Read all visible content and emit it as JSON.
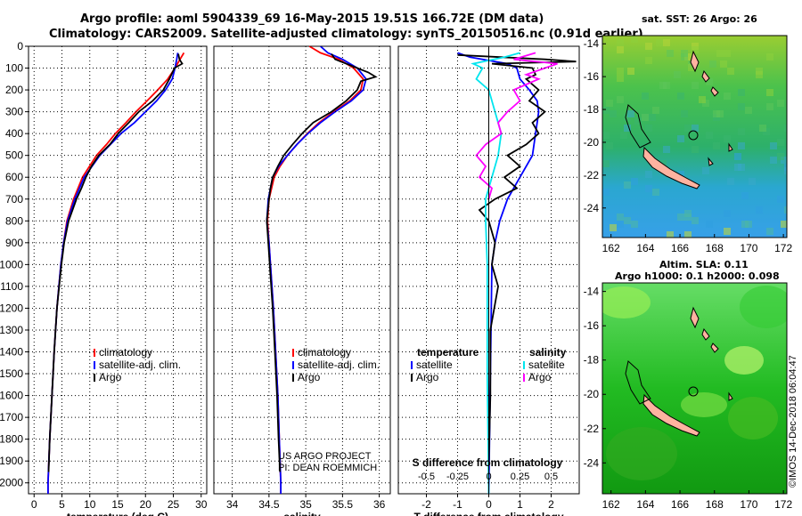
{
  "header": {
    "line1": "Argo profile: aoml 5904339_69 16-May-2015 19.51S 166.72E (DM data)",
    "line2": "Climatology: CARS2009. Satellite-adjusted climatology: synTS_20150516.nc (0.91d earlier)"
  },
  "colors": {
    "climatology": "#ff0000",
    "satellite": "#0000ff",
    "argo": "#000000",
    "sat_salinity": "#00e5ee",
    "argo_salinity": "#ff00ff"
  },
  "chart_data": [
    {
      "type": "line",
      "name": "temperature-profile",
      "xlabel": "temperature (deg C)",
      "ylabel": "",
      "xlim": [
        -1,
        31
      ],
      "ylim": [
        2050,
        0
      ],
      "xticks": [
        0,
        5,
        10,
        15,
        20,
        25,
        30
      ],
      "yticks": [
        0,
        100,
        200,
        300,
        400,
        500,
        600,
        700,
        800,
        900,
        1000,
        1100,
        1200,
        1300,
        1400,
        1500,
        1600,
        1700,
        1800,
        1900,
        2000
      ],
      "legend": [
        "climatology",
        "satellite-adj. clim.",
        "Argo"
      ],
      "series": [
        {
          "name": "climatology",
          "color": "#ff0000",
          "depth": [
            30,
            60,
            100,
            150,
            200,
            250,
            300,
            350,
            400,
            450,
            500,
            600,
            700,
            800,
            900,
            1000,
            1200,
            1400,
            1600,
            1800,
            2000,
            2050
          ],
          "values": [
            26.9,
            26.2,
            25.3,
            24.0,
            22.2,
            20.3,
            18.3,
            16.5,
            14.6,
            13.0,
            11.2,
            8.7,
            7.1,
            5.9,
            5.3,
            4.8,
            4.1,
            3.6,
            3.2,
            2.8,
            2.5,
            2.5
          ]
        },
        {
          "name": "satellite-adj. clim.",
          "color": "#0000ff",
          "depth": [
            30,
            60,
            100,
            150,
            200,
            250,
            300,
            350,
            400,
            450,
            500,
            600,
            700,
            800,
            900,
            1000,
            1200,
            1400,
            1600,
            1800,
            2000,
            2050
          ],
          "values": [
            25.8,
            25.6,
            25.3,
            24.8,
            23.6,
            22.0,
            20.0,
            18.0,
            15.6,
            13.7,
            11.8,
            9.0,
            7.3,
            6.0,
            5.3,
            4.8,
            4.1,
            3.6,
            3.2,
            2.8,
            2.5,
            2.5
          ]
        },
        {
          "name": "Argo",
          "color": "#000000",
          "depth": [
            35,
            60,
            80,
            100,
            150,
            200,
            250,
            300,
            350,
            400,
            450,
            500,
            550,
            600,
            650,
            700,
            800,
            900,
            1000,
            1200,
            1400,
            1600,
            1800,
            1950
          ],
          "values": [
            25.9,
            26.1,
            26.6,
            25.2,
            24.3,
            23.2,
            21.3,
            18.8,
            17.0,
            15.1,
            13.6,
            11.6,
            10.3,
            9.3,
            8.5,
            7.6,
            6.2,
            5.4,
            4.9,
            4.1,
            3.6,
            3.2,
            2.8,
            2.6
          ]
        }
      ]
    },
    {
      "type": "line",
      "name": "salinity-profile",
      "xlabel": "salinity",
      "xlim": [
        33.75,
        36.15
      ],
      "ylim": [
        2050,
        0
      ],
      "xticks": [
        34,
        34.5,
        35,
        35.5,
        36
      ],
      "xticklabels": [
        "34",
        "34.5",
        "35",
        "35.5",
        "36"
      ],
      "legend": [
        "climatology",
        "satellite-adj. clim.",
        "Argo"
      ],
      "annotation": [
        "US ARGO PROJECT",
        "PI: DEAN ROEMMICH"
      ],
      "series": [
        {
          "name": "climatology",
          "color": "#ff0000",
          "depth": [
            0,
            30,
            60,
            100,
            150,
            200,
            250,
            300,
            350,
            400,
            450,
            500,
            550,
            600,
            700,
            800,
            900,
            1000,
            1200,
            1400,
            1600,
            1800,
            2000,
            2050
          ],
          "values": [
            35.05,
            35.2,
            35.45,
            35.65,
            35.78,
            35.75,
            35.6,
            35.38,
            35.18,
            35.02,
            34.88,
            34.75,
            34.65,
            34.57,
            34.5,
            34.48,
            34.5,
            34.52,
            34.56,
            34.59,
            34.62,
            34.64,
            34.66,
            34.66
          ]
        },
        {
          "name": "satellite-adj. clim.",
          "color": "#0000ff",
          "depth": [
            0,
            30,
            60,
            100,
            150,
            200,
            250,
            300,
            350,
            400,
            450,
            500,
            550,
            600,
            700,
            800,
            900,
            1000,
            1200,
            1400,
            1600,
            1800,
            2000,
            2050
          ],
          "values": [
            35.2,
            35.3,
            35.5,
            35.7,
            35.82,
            35.78,
            35.62,
            35.4,
            35.2,
            35.03,
            34.88,
            34.75,
            34.63,
            34.55,
            34.49,
            34.47,
            34.5,
            34.52,
            34.56,
            34.59,
            34.62,
            34.64,
            34.66,
            34.66
          ]
        },
        {
          "name": "Argo",
          "color": "#000000",
          "depth": [
            35,
            60,
            80,
            100,
            120,
            140,
            160,
            200,
            250,
            300,
            350,
            400,
            450,
            500,
            550,
            600,
            650,
            700,
            800,
            900,
            1000,
            1200,
            1400,
            1600,
            1800,
            1950
          ],
          "values": [
            35.35,
            35.4,
            35.55,
            35.7,
            35.85,
            35.95,
            35.75,
            35.7,
            35.55,
            35.35,
            35.1,
            34.95,
            34.82,
            34.7,
            34.62,
            34.55,
            34.52,
            34.5,
            34.47,
            34.49,
            34.51,
            34.55,
            34.58,
            34.61,
            34.63,
            34.65
          ]
        }
      ]
    },
    {
      "type": "line",
      "name": "difference-profile",
      "xlabel": "T difference from climatology",
      "xlabel_top": "S difference from climatology",
      "xlim": [
        -2.9,
        2.9
      ],
      "ylim": [
        2050,
        0
      ],
      "xticks": [
        -2,
        -1,
        0,
        1,
        2
      ],
      "s_ticks": [
        -0.5,
        -0.25,
        0,
        0.25,
        0.5
      ],
      "s_ticklabels": [
        "-0.5",
        "-0.25",
        "0",
        "0.25",
        "0.5"
      ],
      "legend_left_title": "temperature",
      "legend_right_title": "salinity",
      "legend_left": [
        "satellite",
        "Argo"
      ],
      "legend_right": [
        "satellite",
        "Argo"
      ],
      "series": [
        {
          "name": "T satellite",
          "color": "#0000ff",
          "depth": [
            30,
            50,
            80,
            100,
            150,
            200,
            250,
            300,
            350,
            400,
            500,
            600,
            700,
            800,
            900,
            1000,
            1500,
            2050
          ],
          "values": [
            -1.0,
            -0.6,
            0.6,
            0.9,
            1.0,
            1.3,
            1.55,
            1.6,
            1.55,
            1.5,
            1.4,
            1.0,
            0.6,
            0.35,
            0.2,
            0.1,
            0.05,
            0.0
          ]
        },
        {
          "name": "T Argo",
          "color": "#000000",
          "depth": [
            40,
            60,
            70,
            80,
            100,
            130,
            150,
            200,
            250,
            300,
            350,
            400,
            450,
            500,
            550,
            600,
            650,
            700,
            750,
            800,
            900,
            1000,
            1100,
            1300,
            1600,
            1900
          ],
          "values": [
            -1.0,
            1.8,
            2.8,
            0.1,
            1.4,
            1.5,
            1.2,
            1.6,
            1.3,
            1.8,
            1.4,
            1.6,
            1.2,
            0.6,
            1.0,
            0.5,
            0.9,
            0.2,
            -0.3,
            0.0,
            0.2,
            0.1,
            0.3,
            0.05,
            0.05,
            0.0
          ]
        },
        {
          "name": "S satellite",
          "color": "#00e5ee",
          "depth": [
            30,
            50,
            80,
            100,
            150,
            200,
            300,
            400,
            500,
            600,
            700,
            800,
            1000,
            1500,
            2050
          ],
          "values": [
            1.0,
            0.5,
            -0.5,
            -0.2,
            -0.4,
            0.0,
            0.2,
            0.4,
            0.3,
            0.1,
            -0.1,
            -0.1,
            -0.05,
            -0.05,
            0.0
          ]
        },
        {
          "name": "S Argo",
          "color": "#ff00ff",
          "depth": [
            30,
            60,
            80,
            100,
            130,
            150,
            200,
            250,
            300,
            350,
            400,
            450,
            500,
            550,
            600,
            650,
            700
          ],
          "values": [
            1.5,
            0.8,
            2.2,
            1.8,
            1.2,
            1.6,
            0.8,
            1.0,
            0.6,
            0.3,
            0.4,
            -0.1,
            -0.4,
            -0.1,
            -0.3,
            0.1,
            0.0
          ]
        }
      ]
    },
    {
      "type": "heatmap",
      "name": "sst-map",
      "title": "sat. SST: 26 Argo: 26",
      "xlim": [
        161.5,
        172.2
      ],
      "ylim": [
        -25.8,
        -13.5
      ],
      "xticks": [
        162,
        164,
        166,
        168,
        170,
        172
      ],
      "yticks": [
        -14,
        -16,
        -18,
        -20,
        -22,
        -24
      ],
      "argo_location": [
        166.72,
        -19.51
      ]
    },
    {
      "type": "heatmap",
      "name": "sla-map",
      "title": "Altim. SLA: 0.11",
      "subtitle": "Argo h1000: 0.1 h2000: 0.098",
      "xlim": [
        161.5,
        172.2
      ],
      "ylim": [
        -25.8,
        -13.5
      ],
      "xticks": [
        162,
        164,
        166,
        168,
        170,
        172
      ],
      "yticks": [
        -14,
        -16,
        -18,
        -20,
        -22,
        -24
      ],
      "argo_location": [
        166.72,
        -19.51
      ]
    }
  ],
  "watermark": "©IMOS 14-Dec-2018 06:04:47"
}
